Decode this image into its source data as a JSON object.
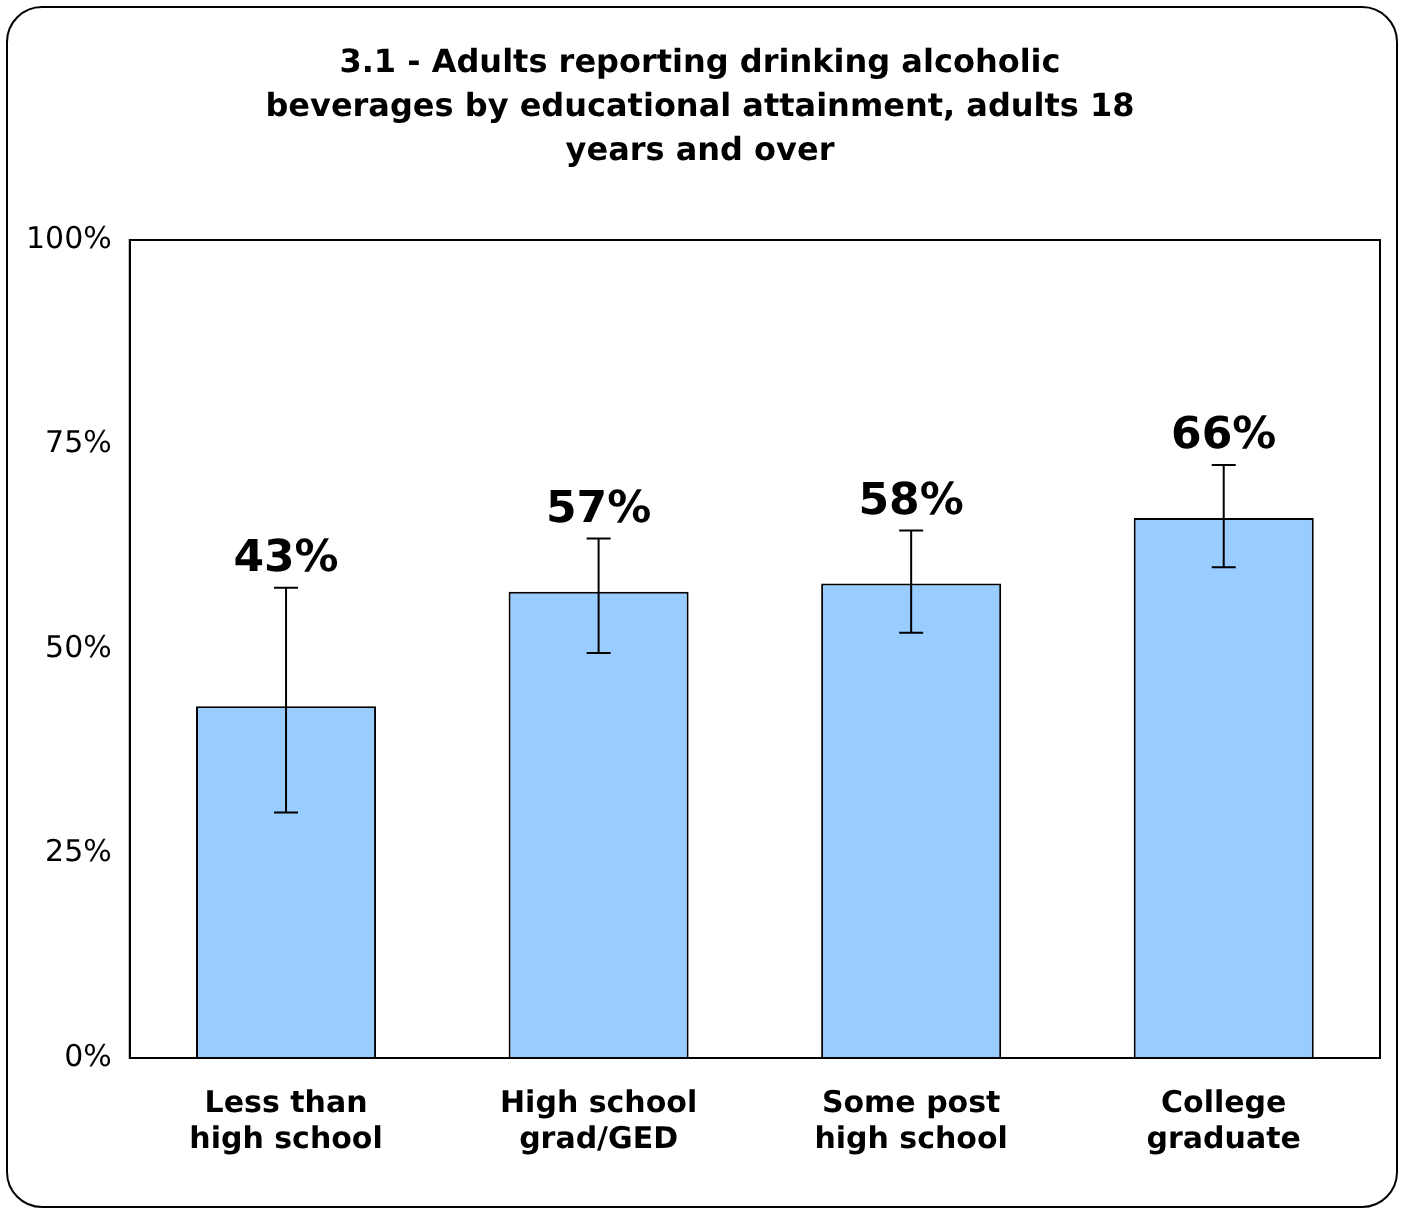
{
  "chart_data": {
    "type": "bar",
    "title": "3.1 - Adults reporting drinking alcoholic beverages by educational attainment, adults 18 years and over",
    "categories": [
      "Less than high school",
      "High school grad/GED",
      "Some post high school",
      "College graduate"
    ],
    "values": [
      43,
      57,
      58,
      66
    ],
    "color": "#99ccff",
    "errors": [
      [
        30,
        57.5
      ],
      [
        49.5,
        63.5
      ],
      [
        52,
        64.5
      ],
      [
        60,
        72.5
      ]
    ],
    "ylim": [
      0,
      100
    ],
    "yticks": [
      {
        "value": 0,
        "label": "0%"
      },
      {
        "value": 25,
        "label": "25%"
      },
      {
        "value": 50,
        "label": "50%"
      },
      {
        "value": 75,
        "label": "75%"
      },
      {
        "value": 100,
        "label": "100%"
      }
    ],
    "value_labels": [
      "43%",
      "57%",
      "58%",
      "66%"
    ],
    "grid": false,
    "legend": false
  }
}
